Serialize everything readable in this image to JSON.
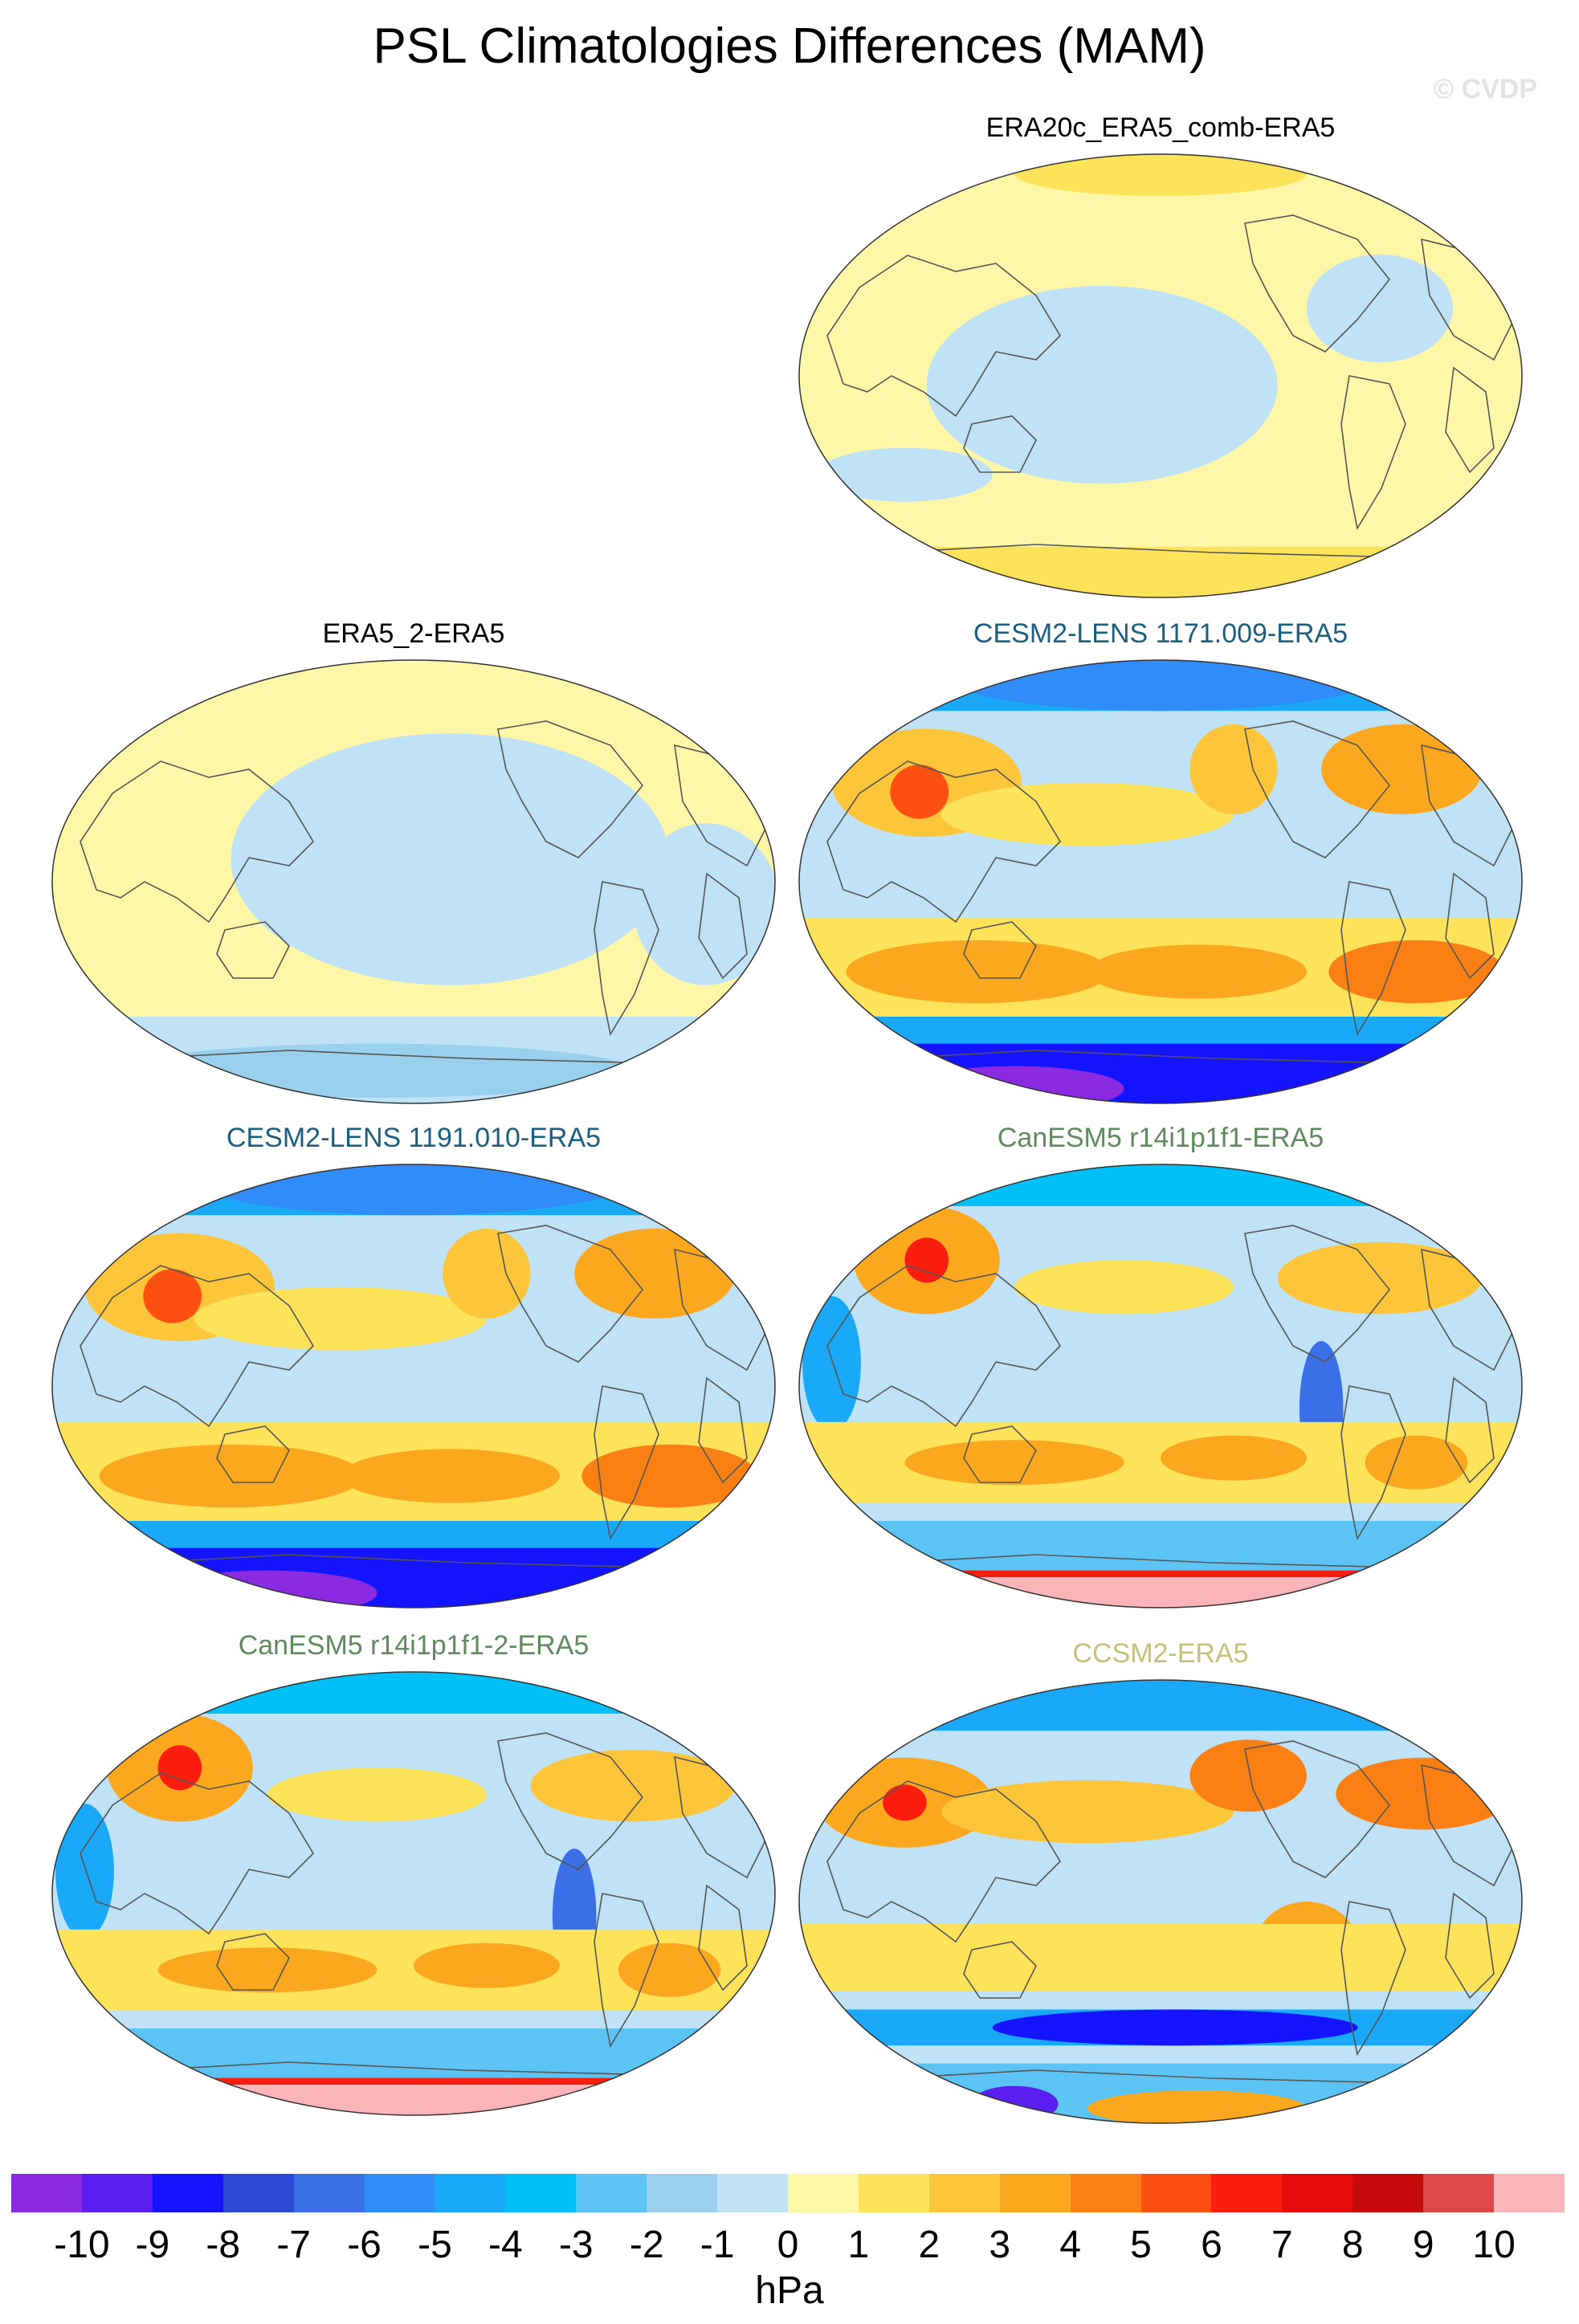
{
  "title": "PSL Climatologies Differences (MAM)",
  "watermark": "© CVDP",
  "panels": [
    {
      "id": "p1",
      "label": "ERA20c_ERA5_comb-ERA5",
      "label_color": "#000000",
      "pattern": "weak_pos"
    },
    {
      "id": "p2",
      "label": "ERA5_2-ERA5",
      "label_color": "#000000",
      "pattern": "weak_mixed"
    },
    {
      "id": "p3",
      "label": "CESM2-LENS 1171.009-ERA5",
      "label_color": "#1a5f80",
      "pattern": "cesm"
    },
    {
      "id": "p4",
      "label": "CESM2-LENS 1191.010-ERA5",
      "label_color": "#1a5f80",
      "pattern": "cesm"
    },
    {
      "id": "p5",
      "label": "CanESM5 r14i1p1f1-ERA5",
      "label_color": "#5e8a5e",
      "pattern": "canesm"
    },
    {
      "id": "p6",
      "label": "CanESM5 r14i1p1f1-2-ERA5",
      "label_color": "#5e8a5e",
      "pattern": "canesm"
    },
    {
      "id": "p7",
      "label": "CCSM2-ERA5",
      "label_color": "#c8c07a",
      "pattern": "ccsm"
    }
  ],
  "colorbar": {
    "colors": [
      "#8a2be2",
      "#5a1ef0",
      "#1414ff",
      "#2b4ad8",
      "#3a6fe8",
      "#2f8cf8",
      "#1aa8f8",
      "#00c0f8",
      "#5cc4f4",
      "#98d0ee",
      "#bfe2f6",
      "#fff7a8",
      "#fde35a",
      "#fcc53a",
      "#fba81e",
      "#fb8014",
      "#fb5010",
      "#fb1e0e",
      "#e60c0c",
      "#c60a0a",
      "#e04848",
      "#fbb4b8"
    ],
    "ticks": [
      "-10",
      "-9",
      "-8",
      "-7",
      "-6",
      "-5",
      "-4",
      "-3",
      "-2",
      "-1",
      "0",
      "1",
      "2",
      "3",
      "4",
      "5",
      "6",
      "7",
      "8",
      "9",
      "10"
    ],
    "units": "hPa"
  }
}
